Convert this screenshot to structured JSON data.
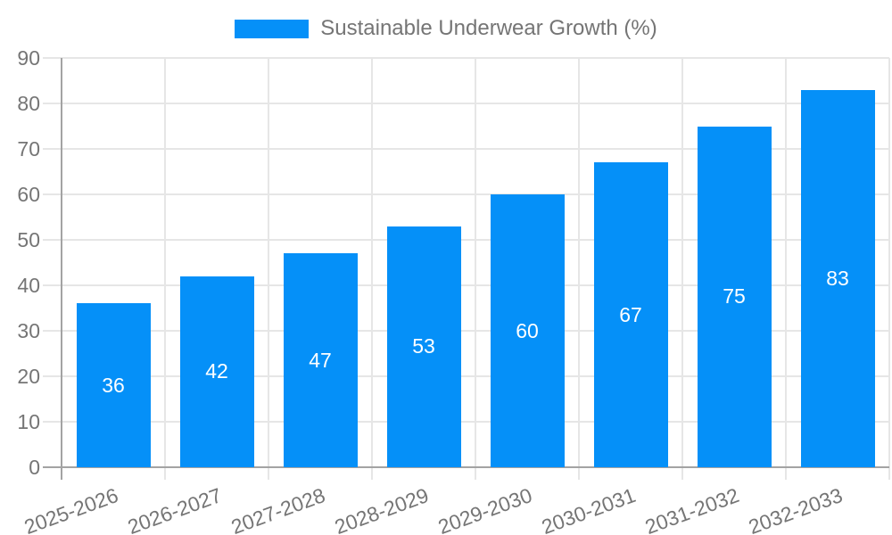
{
  "chart_data": {
    "type": "bar",
    "title": "Sustainable Underwear Growth (%)",
    "categories": [
      "2025-2026",
      "2026-2027",
      "2027-2028",
      "2028-2029",
      "2029-2030",
      "2030-2031",
      "2031-2032",
      "2032-2033"
    ],
    "values": [
      36,
      42,
      47,
      53,
      60,
      67,
      75,
      83
    ],
    "series_name": "Sustainable Underwear Growth (%)",
    "xlabel": "",
    "ylabel": "",
    "ylim": [
      0,
      90
    ],
    "yticks": [
      0,
      10,
      20,
      30,
      40,
      50,
      60,
      70,
      80,
      90
    ],
    "grid": true,
    "legend_position": "top-center",
    "value_label_position": "inside-center",
    "colors": {
      "bar": "#0590f8",
      "grid_line": "#e6e6e6",
      "axis_line": "#a3a3a3",
      "tick_text": "#757575",
      "legend_text": "#757575",
      "value_label_text": "#ffffff",
      "background": "#ffffff"
    }
  }
}
